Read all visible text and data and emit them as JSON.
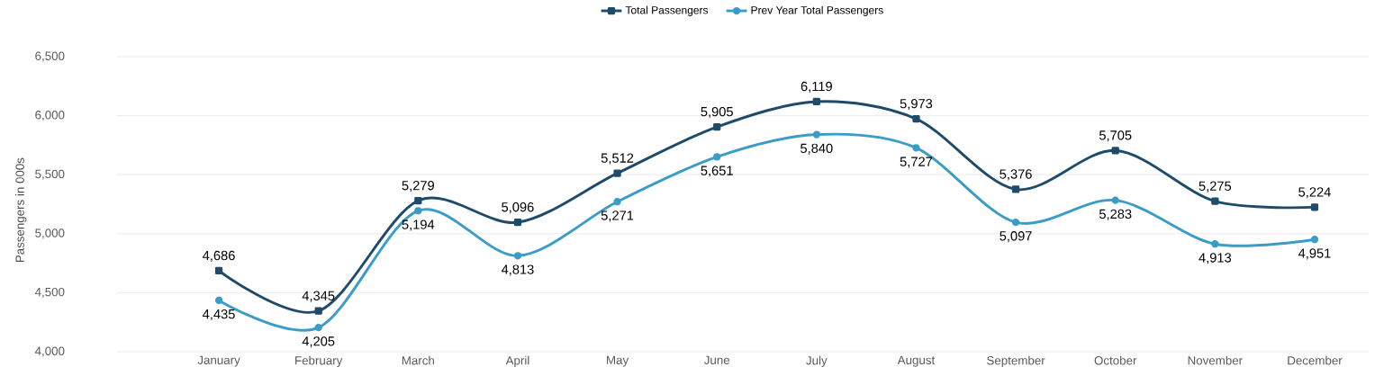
{
  "chart_data": {
    "type": "line",
    "ylabel": "Passengers in 000s",
    "categories": [
      "January",
      "February",
      "March",
      "April",
      "May",
      "June",
      "July",
      "August",
      "September",
      "October",
      "November",
      "December"
    ],
    "series": [
      {
        "name": "Total Passengers",
        "color": "#1f4b6b",
        "marker": "square",
        "values": [
          4686,
          4345,
          5279,
          5096,
          5512,
          5905,
          6119,
          5973,
          5376,
          5705,
          5275,
          5224
        ],
        "value_labels": [
          "4,686",
          "4,345",
          "5,279",
          "5,096",
          "5,512",
          "5,905",
          "6,119",
          "5,973",
          "5,376",
          "5,705",
          "5,275",
          "5,224"
        ]
      },
      {
        "name": "Prev Year Total Passengers",
        "color": "#3a9cc7",
        "marker": "circle",
        "values": [
          4435,
          4205,
          5194,
          4813,
          5271,
          5651,
          5840,
          5727,
          5097,
          5283,
          4913,
          4951
        ],
        "value_labels": [
          "4,435",
          "4,205",
          "5,194",
          "4,813",
          "5,271",
          "5,651",
          "5,840",
          "5,727",
          "5,097",
          "5,283",
          "4,913",
          "4,951"
        ]
      }
    ],
    "ylim": [
      4000,
      6500
    ],
    "yticks": [
      {
        "value": 4000,
        "label": "4,000"
      },
      {
        "value": 4500,
        "label": "4,500"
      },
      {
        "value": 5000,
        "label": "5,000"
      },
      {
        "value": 5500,
        "label": "5,500"
      },
      {
        "value": 6000,
        "label": "6,000"
      },
      {
        "value": 6500,
        "label": "6,500"
      }
    ],
    "grid": "y",
    "legend": "top"
  }
}
